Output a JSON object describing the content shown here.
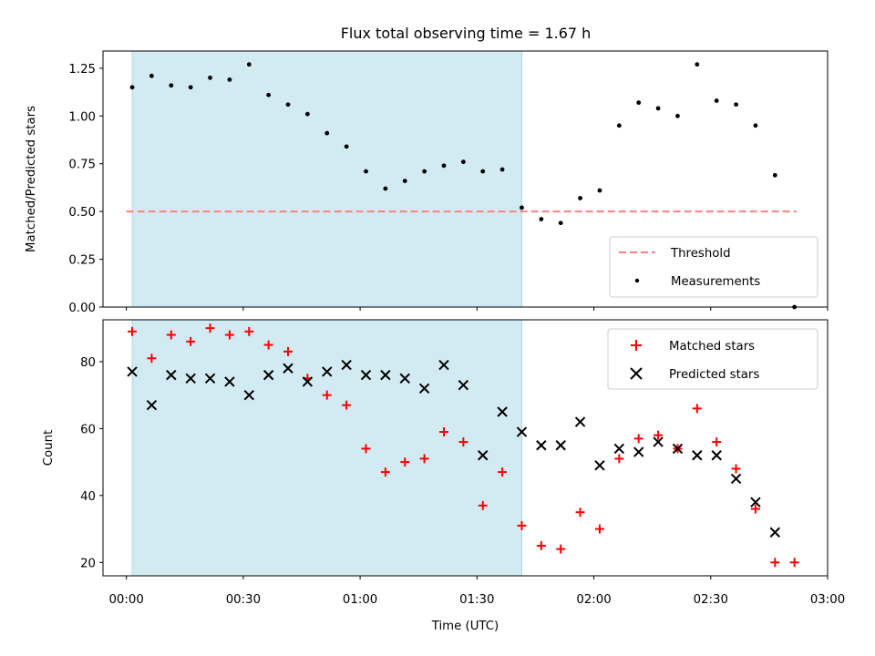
{
  "chart_data": {
    "type": "scatter",
    "title": "Flux total observing time = 1.67 h",
    "xlabel": "Time (UTC)",
    "xlim_minutes": [
      -6,
      180
    ],
    "xticks": [
      {
        "minute": 0,
        "label": "00:00"
      },
      {
        "minute": 30,
        "label": "00:30"
      },
      {
        "minute": 60,
        "label": "01:00"
      },
      {
        "minute": 90,
        "label": "01:30"
      },
      {
        "minute": 120,
        "label": "02:00"
      },
      {
        "minute": 150,
        "label": "02:30"
      },
      {
        "minute": 180,
        "label": "03:00"
      }
    ],
    "shaded_interval_minutes": [
      1.5,
      101.5
    ],
    "shade_color": "#add8e6",
    "top_panel": {
      "ylabel": "Matched/Predicted stars",
      "ylim": [
        0,
        1.34
      ],
      "yticks": [
        "0.00",
        "0.25",
        "0.50",
        "0.75",
        "1.00",
        "1.25"
      ],
      "threshold": {
        "name": "Threshold",
        "value": 0.5,
        "x_range_minutes": [
          0,
          172
        ],
        "color": "#ff8080"
      },
      "measurements": {
        "name": "Measurements",
        "color": "#000000",
        "x_minutes": [
          1.5,
          6.5,
          11.5,
          16.5,
          21.5,
          26.5,
          31.5,
          36.5,
          41.5,
          46.5,
          51.5,
          56.5,
          61.5,
          66.5,
          71.5,
          76.5,
          81.5,
          86.5,
          91.5,
          96.5,
          101.5,
          106.5,
          111.5,
          116.5,
          121.5,
          126.5,
          131.5,
          136.5,
          141.5,
          146.5,
          151.5,
          156.5,
          161.5,
          166.5,
          171.5
        ],
        "y": [
          1.15,
          1.21,
          1.16,
          1.15,
          1.2,
          1.19,
          1.27,
          1.11,
          1.06,
          1.01,
          0.91,
          0.84,
          0.71,
          0.62,
          0.66,
          0.71,
          0.74,
          0.76,
          0.71,
          0.72,
          0.52,
          0.46,
          0.44,
          0.57,
          0.61,
          0.95,
          1.07,
          1.04,
          1.0,
          1.27,
          1.08,
          1.06,
          0.95,
          0.69,
          0.0
        ]
      }
    },
    "bottom_panel": {
      "ylabel": "Count",
      "ylim": [
        16,
        92.5
      ],
      "yticks": [
        "20",
        "40",
        "60",
        "80"
      ],
      "series": [
        {
          "name": "Matched stars",
          "marker": "plus",
          "color": "#ff0000",
          "x_minutes": [
            1.5,
            6.5,
            11.5,
            16.5,
            21.5,
            26.5,
            31.5,
            36.5,
            41.5,
            46.5,
            51.5,
            56.5,
            61.5,
            66.5,
            71.5,
            76.5,
            81.5,
            86.5,
            91.5,
            96.5,
            101.5,
            106.5,
            111.5,
            116.5,
            121.5,
            126.5,
            131.5,
            136.5,
            141.5,
            146.5,
            151.5,
            156.5,
            161.5,
            166.5,
            171.5
          ],
          "y": [
            89,
            81,
            88,
            86,
            90,
            88,
            89,
            85,
            83,
            75,
            70,
            67,
            54,
            47,
            50,
            51,
            59,
            56,
            37,
            47,
            31,
            25,
            24,
            35,
            30,
            51,
            57,
            58,
            54,
            66,
            56,
            48,
            36,
            20,
            20
          ]
        },
        {
          "name": "Predicted stars",
          "marker": "x",
          "color": "#000000",
          "x_minutes": [
            1.5,
            6.5,
            11.5,
            16.5,
            21.5,
            26.5,
            31.5,
            36.5,
            41.5,
            46.5,
            51.5,
            56.5,
            61.5,
            66.5,
            71.5,
            76.5,
            81.5,
            86.5,
            91.5,
            96.5,
            101.5,
            106.5,
            111.5,
            116.5,
            121.5,
            126.5,
            131.5,
            136.5,
            141.5,
            146.5,
            151.5,
            156.5,
            161.5,
            166.5
          ],
          "y": [
            77,
            67,
            76,
            75,
            75,
            74,
            70,
            76,
            78,
            74,
            77,
            79,
            76,
            76,
            75,
            72,
            79,
            73,
            52,
            65,
            59,
            55,
            55,
            62,
            49,
            54,
            53,
            56,
            54,
            52,
            52,
            45,
            38,
            29
          ]
        }
      ]
    }
  }
}
